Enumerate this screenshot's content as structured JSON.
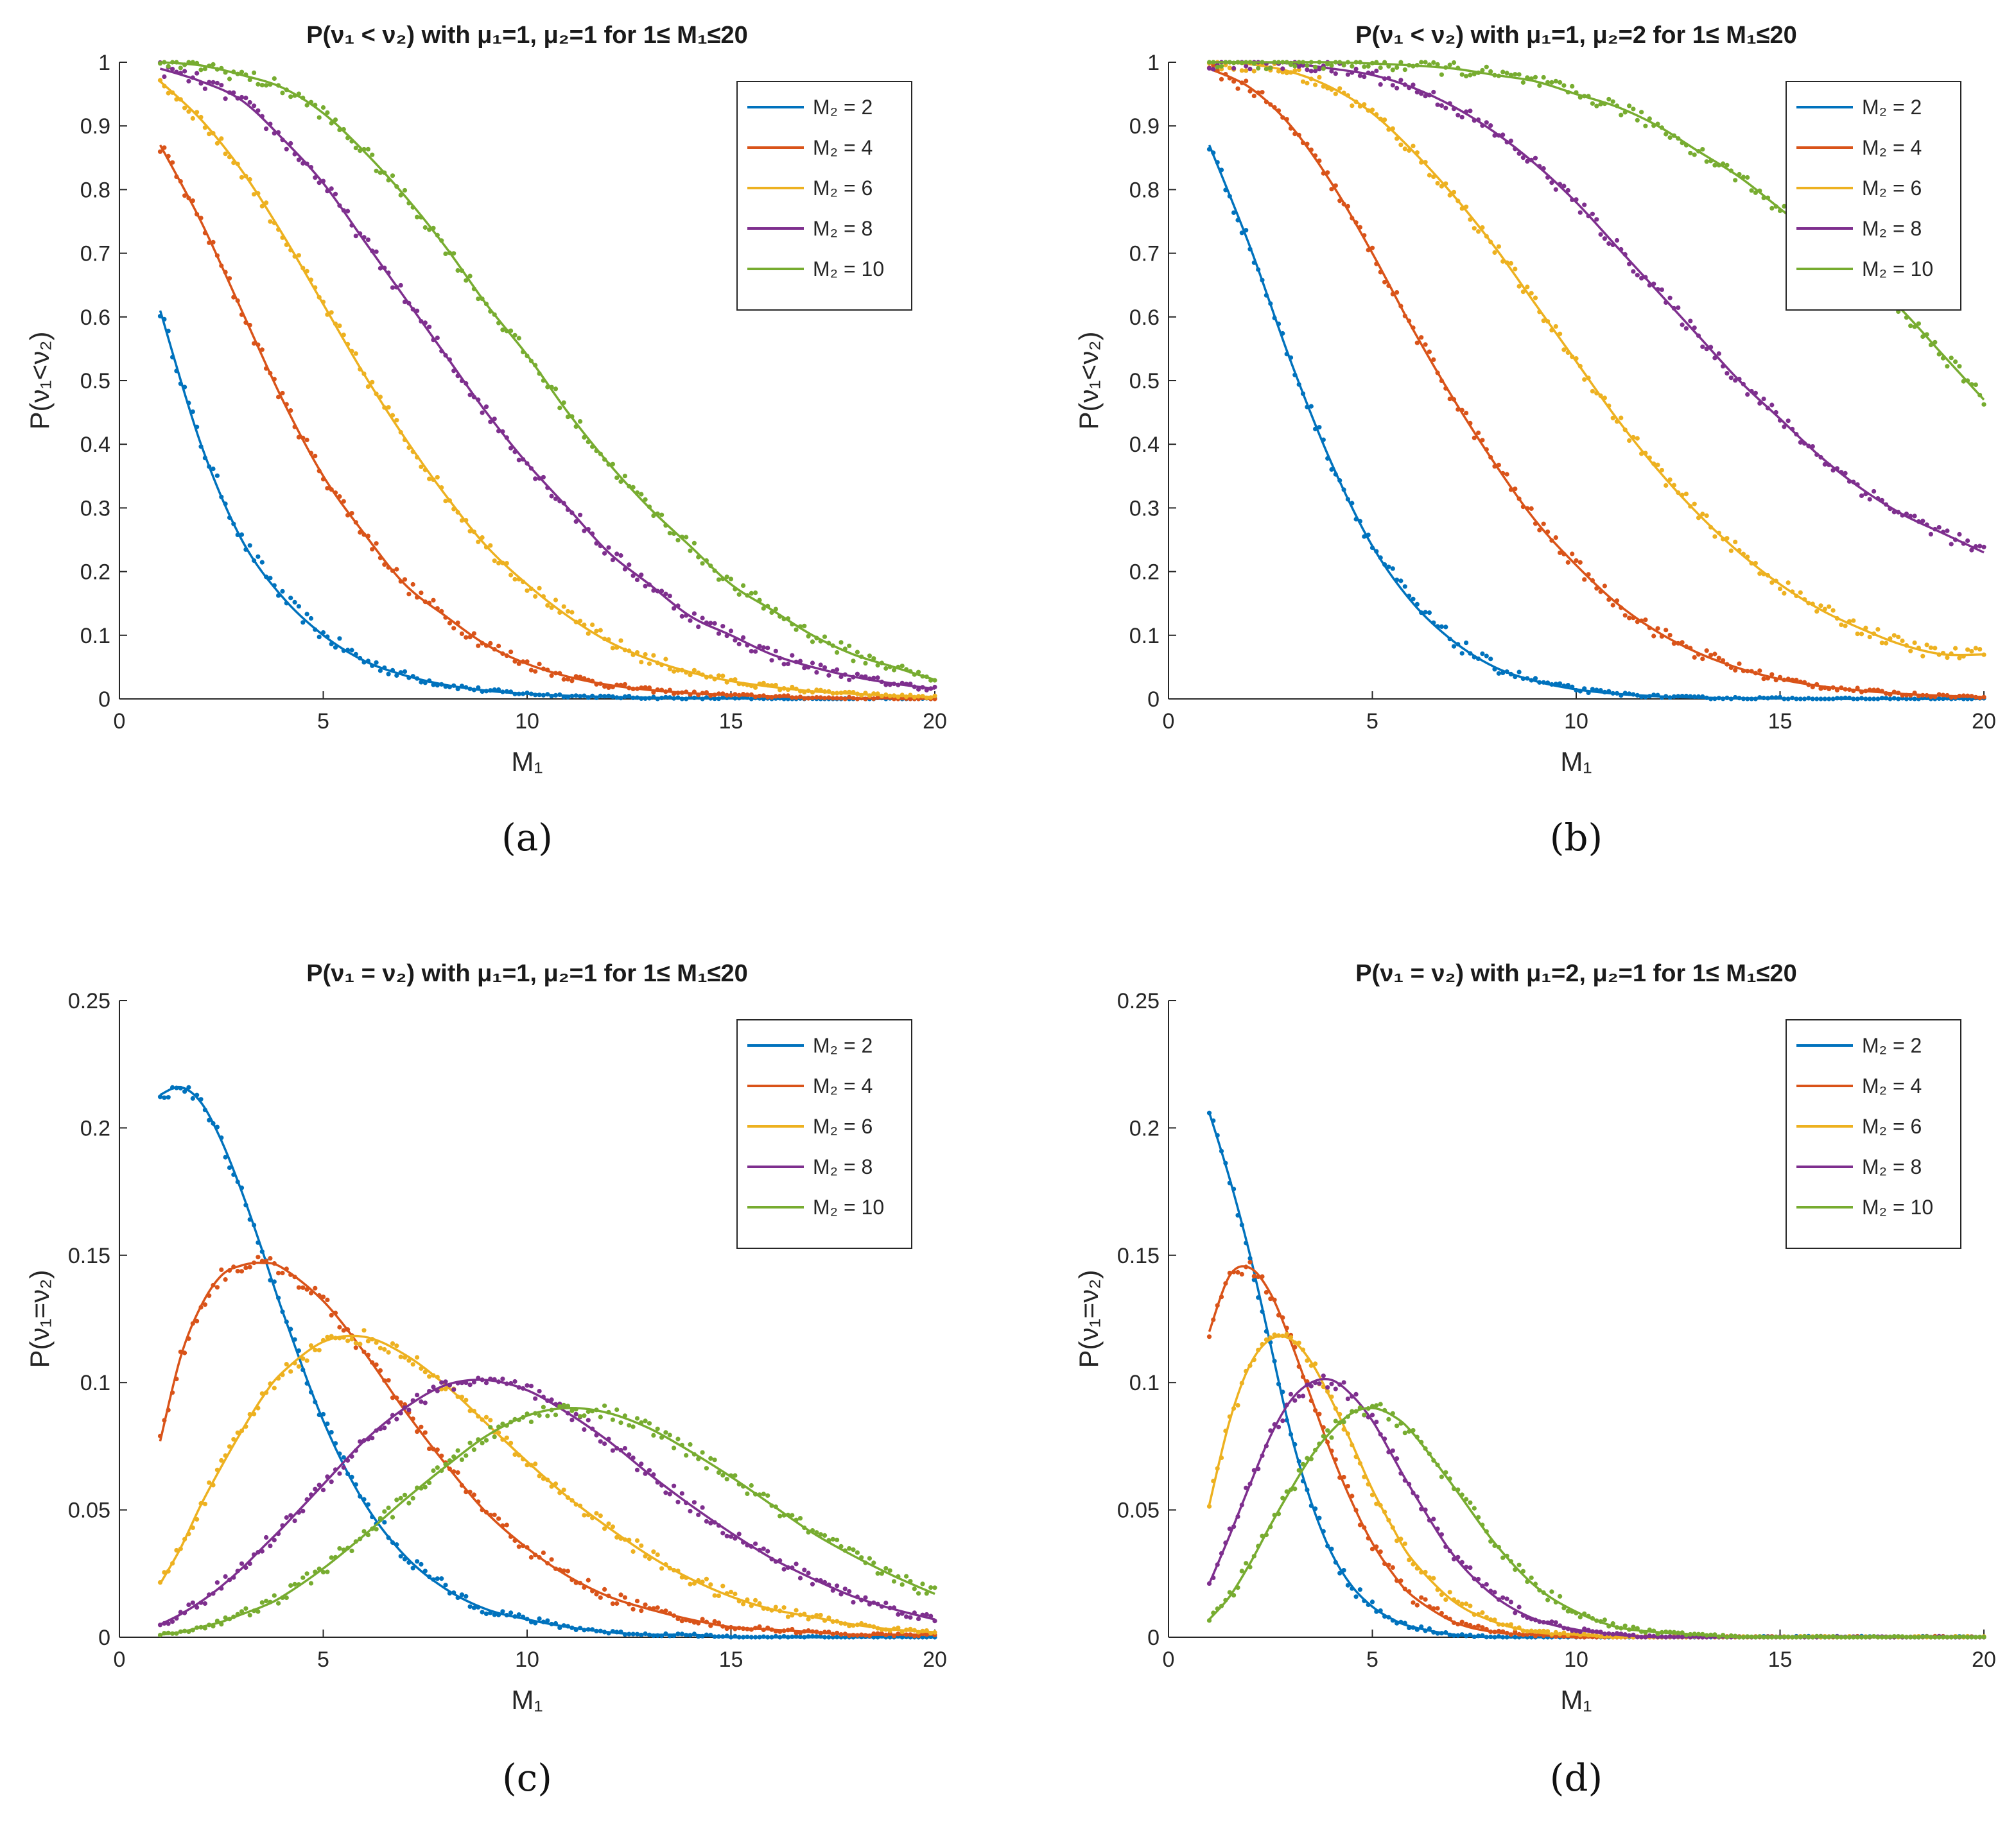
{
  "series_colors": {
    "M2=2": "#0072BD",
    "M2=4": "#D95319",
    "M2=6": "#EDB120",
    "M2=8": "#7E2F8E",
    "M2=10": "#77AC30"
  },
  "chart_data": [
    {
      "id": "a",
      "caption": "(a)",
      "type": "line",
      "title": "P(ν₁ < ν₂) with μ₁=1, μ₂=1 for 1≤ M₁≤20",
      "xlabel": "M₁",
      "ylabel": "P(ν₁<ν₂)",
      "xlim": [
        0,
        20
      ],
      "ylim": [
        0,
        1
      ],
      "xticks": [
        "0",
        "5",
        "10",
        "15",
        "20"
      ],
      "yticks": [
        "0",
        "0.1",
        "0.2",
        "0.3",
        "0.4",
        "0.5",
        "0.6",
        "0.7",
        "0.8",
        "0.9",
        "1"
      ],
      "legend_position": "top-right",
      "x": [
        1,
        2,
        3,
        4,
        5,
        6,
        7,
        8,
        9,
        10,
        11,
        12,
        13,
        14,
        15,
        16,
        17,
        18,
        19,
        20
      ],
      "series": [
        {
          "name": "M₂ = 2",
          "values": [
            0.61,
            0.4,
            0.25,
            0.16,
            0.1,
            0.06,
            0.037,
            0.022,
            0.013,
            0.008,
            0.005,
            0.003,
            0.002,
            0.001,
            0.001,
            0,
            0,
            0,
            0,
            0
          ]
        },
        {
          "name": "M₂ = 4",
          "values": [
            0.87,
            0.75,
            0.61,
            0.47,
            0.35,
            0.26,
            0.18,
            0.13,
            0.085,
            0.055,
            0.035,
            0.022,
            0.014,
            0.009,
            0.006,
            0.004,
            0.002,
            0.001,
            0.001,
            0
          ]
        },
        {
          "name": "M₂ = 6",
          "values": [
            0.97,
            0.91,
            0.83,
            0.73,
            0.62,
            0.51,
            0.41,
            0.32,
            0.24,
            0.18,
            0.13,
            0.09,
            0.062,
            0.042,
            0.028,
            0.019,
            0.012,
            0.008,
            0.005,
            0.003
          ]
        },
        {
          "name": "M₂ = 8",
          "values": [
            0.99,
            0.97,
            0.94,
            0.88,
            0.81,
            0.72,
            0.63,
            0.54,
            0.45,
            0.37,
            0.3,
            0.23,
            0.18,
            0.13,
            0.1,
            0.07,
            0.05,
            0.035,
            0.024,
            0.016
          ]
        },
        {
          "name": "M₂ = 10",
          "values": [
            1.0,
            0.995,
            0.98,
            0.96,
            0.92,
            0.86,
            0.79,
            0.71,
            0.62,
            0.54,
            0.45,
            0.37,
            0.3,
            0.24,
            0.18,
            0.14,
            0.1,
            0.07,
            0.05,
            0.03
          ]
        }
      ]
    },
    {
      "id": "b",
      "caption": "(b)",
      "type": "line",
      "title": "P(ν₁ < ν₂) with μ₁=1, μ₂=2 for 1≤ M₁≤20",
      "xlabel": "M₁",
      "ylabel": "P(ν₁<ν₂)",
      "xlim": [
        0,
        20
      ],
      "ylim": [
        0,
        1
      ],
      "xticks": [
        "0",
        "5",
        "10",
        "15",
        "20"
      ],
      "yticks": [
        "0",
        "0.1",
        "0.2",
        "0.3",
        "0.4",
        "0.5",
        "0.6",
        "0.7",
        "0.8",
        "0.9",
        "1"
      ],
      "legend_position": "top-right",
      "x": [
        1,
        2,
        3,
        4,
        5,
        6,
        7,
        8,
        9,
        10,
        11,
        12,
        13,
        14,
        15,
        16,
        17,
        18,
        19,
        20
      ],
      "series": [
        {
          "name": "M₂ = 2",
          "values": [
            0.87,
            0.71,
            0.53,
            0.37,
            0.24,
            0.15,
            0.09,
            0.05,
            0.028,
            0.015,
            0.008,
            0.004,
            0.002,
            0.001,
            0.001,
            0,
            0,
            0,
            0,
            0
          ]
        },
        {
          "name": "M₂ = 4",
          "values": [
            0.99,
            0.96,
            0.9,
            0.81,
            0.7,
            0.58,
            0.47,
            0.37,
            0.28,
            0.21,
            0.15,
            0.105,
            0.072,
            0.048,
            0.031,
            0.02,
            0.013,
            0.008,
            0.005,
            0.003
          ]
        },
        {
          "name": "M₂ = 6",
          "values": [
            1.0,
            0.997,
            0.985,
            0.96,
            0.92,
            0.86,
            0.79,
            0.71,
            0.62,
            0.53,
            0.44,
            0.36,
            0.29,
            0.23,
            0.18,
            0.14,
            0.11,
            0.085,
            0.07,
            0.07
          ]
        },
        {
          "name": "M₂ = 8",
          "values": [
            1.0,
            1.0,
            0.998,
            0.99,
            0.98,
            0.96,
            0.93,
            0.89,
            0.84,
            0.78,
            0.71,
            0.64,
            0.57,
            0.5,
            0.44,
            0.38,
            0.33,
            0.29,
            0.26,
            0.23
          ]
        },
        {
          "name": "M₂ = 10",
          "values": [
            1.0,
            1.0,
            1.0,
            1.0,
            0.998,
            0.995,
            0.99,
            0.98,
            0.97,
            0.95,
            0.93,
            0.9,
            0.86,
            0.82,
            0.77,
            0.72,
            0.67,
            0.61,
            0.54,
            0.47
          ]
        }
      ]
    },
    {
      "id": "c",
      "caption": "(c)",
      "type": "line",
      "title": "P(ν₁ = ν₂) with μ₁=1, μ₂=1 for 1≤ M₁≤20",
      "xlabel": "M₁",
      "ylabel": "P(ν₁=ν₂)",
      "xlim": [
        0,
        20
      ],
      "ylim": [
        0,
        0.25
      ],
      "xticks": [
        "0",
        "5",
        "10",
        "15",
        "20"
      ],
      "yticks": [
        "0",
        "0.05",
        "0.1",
        "0.15",
        "0.2",
        "0.25"
      ],
      "legend_position": "top-right",
      "x": [
        1,
        1.5,
        2,
        2.5,
        3,
        3.5,
        4,
        5,
        6,
        7,
        8,
        9,
        10,
        11,
        12,
        13,
        14,
        15,
        16,
        17,
        18,
        19,
        20
      ],
      "series": [
        {
          "name": "M₂ = 2",
          "values": [
            0.213,
            0.216,
            0.21,
            0.195,
            0.175,
            0.152,
            0.128,
            0.085,
            0.053,
            0.032,
            0.019,
            0.011,
            0.007,
            0.004,
            0.002,
            0.001,
            0.001,
            0,
            0,
            0,
            0,
            0,
            0
          ]
        },
        {
          "name": "M₂ = 4",
          "values": [
            0.077,
            0.11,
            0.13,
            0.142,
            0.146,
            0.147,
            0.145,
            0.132,
            0.112,
            0.089,
            0.068,
            0.049,
            0.035,
            0.024,
            0.016,
            0.011,
            0.007,
            0.004,
            0.003,
            0.002,
            0.001,
            0.001,
            0.001
          ]
        },
        {
          "name": "M₂ = 6",
          "values": [
            0.021,
            0.035,
            0.052,
            0.067,
            0.081,
            0.094,
            0.104,
            0.116,
            0.118,
            0.111,
            0.099,
            0.084,
            0.069,
            0.055,
            0.043,
            0.032,
            0.023,
            0.016,
            0.011,
            0.008,
            0.005,
            0.003,
            0.002
          ]
        },
        {
          "name": "M₂ = 8",
          "values": [
            0.005,
            0.009,
            0.014,
            0.02,
            0.027,
            0.035,
            0.043,
            0.06,
            0.077,
            0.09,
            0.099,
            0.101,
            0.097,
            0.088,
            0.077,
            0.064,
            0.052,
            0.041,
            0.031,
            0.023,
            0.016,
            0.011,
            0.007
          ]
        },
        {
          "name": "M₂ = 10",
          "values": [
            0.001,
            0.002,
            0.004,
            0.006,
            0.009,
            0.012,
            0.016,
            0.027,
            0.04,
            0.054,
            0.067,
            0.079,
            0.087,
            0.09,
            0.088,
            0.082,
            0.073,
            0.063,
            0.052,
            0.041,
            0.032,
            0.024,
            0.017
          ]
        }
      ]
    },
    {
      "id": "d",
      "caption": "(d)",
      "type": "line",
      "title": "P(ν₁ = ν₂) with μ₁=2, μ₂=1 for 1≤ M₁≤20",
      "xlabel": "M₁",
      "ylabel": "P(ν₁=ν₂)",
      "xlim": [
        0,
        20
      ],
      "ylim": [
        0,
        0.25
      ],
      "xticks": [
        "0",
        "5",
        "10",
        "15",
        "20"
      ],
      "yticks": [
        "0",
        "0.05",
        "0.1",
        "0.15",
        "0.2",
        "0.25"
      ],
      "legend_position": "top-right",
      "x": [
        1,
        1.5,
        2,
        2.5,
        3,
        3.5,
        4,
        4.5,
        5,
        5.5,
        6,
        7,
        8,
        9,
        10,
        11,
        12,
        13,
        14,
        15,
        16,
        17,
        18,
        19,
        20
      ],
      "series": [
        {
          "name": "M₂ = 2",
          "values": [
            0.206,
            0.18,
            0.15,
            0.115,
            0.08,
            0.053,
            0.033,
            0.02,
            0.012,
            0.007,
            0.004,
            0.001,
            0,
            0,
            0,
            0,
            0,
            0,
            0,
            0,
            0,
            0,
            0,
            0,
            0
          ]
        },
        {
          "name": "M₂ = 4",
          "values": [
            0.12,
            0.142,
            0.145,
            0.135,
            0.116,
            0.094,
            0.072,
            0.053,
            0.037,
            0.025,
            0.016,
            0.006,
            0.002,
            0.001,
            0,
            0,
            0,
            0,
            0,
            0,
            0,
            0,
            0,
            0,
            0
          ]
        },
        {
          "name": "M₂ = 6",
          "values": [
            0.052,
            0.085,
            0.107,
            0.117,
            0.117,
            0.108,
            0.093,
            0.076,
            0.058,
            0.043,
            0.03,
            0.014,
            0.006,
            0.002,
            0.001,
            0,
            0,
            0,
            0,
            0,
            0,
            0,
            0,
            0,
            0
          ]
        },
        {
          "name": "M₂ = 8",
          "values": [
            0.021,
            0.04,
            0.06,
            0.079,
            0.093,
            0.1,
            0.101,
            0.095,
            0.085,
            0.071,
            0.057,
            0.032,
            0.016,
            0.007,
            0.003,
            0.001,
            0,
            0,
            0,
            0,
            0,
            0,
            0,
            0,
            0
          ]
        },
        {
          "name": "M₂ = 10",
          "values": [
            0.007,
            0.016,
            0.029,
            0.044,
            0.058,
            0.071,
            0.081,
            0.088,
            0.09,
            0.087,
            0.08,
            0.059,
            0.037,
            0.02,
            0.01,
            0.004,
            0.002,
            0.001,
            0,
            0,
            0,
            0,
            0,
            0,
            0
          ]
        }
      ]
    }
  ]
}
